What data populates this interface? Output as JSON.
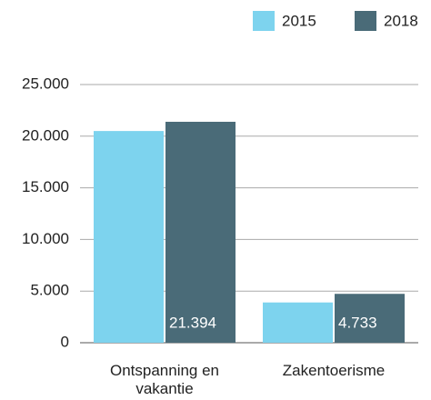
{
  "chart_data": {
    "type": "bar",
    "categories": [
      "Ontspanning en vakantie",
      "Zakentoerisme"
    ],
    "series": [
      {
        "name": "2015",
        "color": "#7dd3ee",
        "values": [
          20500,
          3900
        ]
      },
      {
        "name": "2018",
        "color": "#4a6b78",
        "values": [
          21394,
          4733
        ],
        "value_labels": [
          "21.394",
          "4.733"
        ]
      }
    ],
    "ylim": [
      0,
      25000
    ],
    "yticks": [
      0,
      {
        "value": 5000,
        "label": "5.000"
      },
      {
        "value": 10000,
        "label": "10.000"
      },
      {
        "value": 15000,
        "label": "15.000"
      },
      {
        "value": 20000,
        "label": "20.000"
      },
      {
        "value": 25000,
        "label": "25.000"
      }
    ],
    "grid": true,
    "legend": "top-right"
  }
}
